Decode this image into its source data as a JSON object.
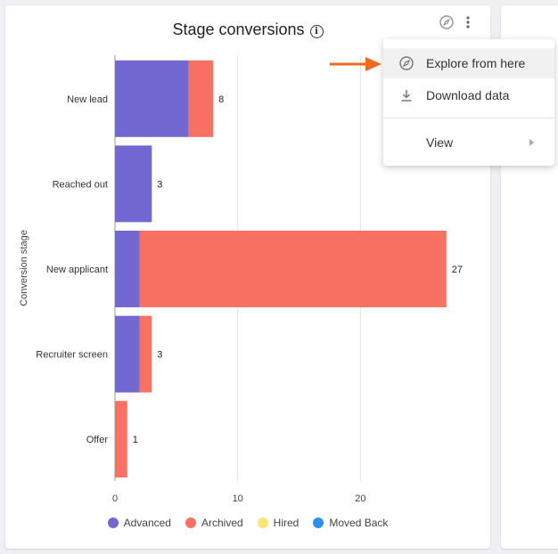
{
  "card": {
    "title": "Stage conversions",
    "info_icon": "info-icon",
    "explore_icon": "compass-icon",
    "more_icon": "kebab-menu-icon"
  },
  "menu": {
    "items": [
      {
        "label": "Explore from here",
        "icon": "compass-icon"
      },
      {
        "label": "Download data",
        "icon": "download-icon"
      },
      {
        "label": "View",
        "icon": "chevron-right-icon"
      }
    ]
  },
  "colors": {
    "advanced": "#7367d2",
    "archived": "#f97162",
    "hired": "#fbe57a",
    "moved_back": "#2f8cf0",
    "arrow": "#ef6a1f"
  },
  "chart_data": {
    "type": "bar",
    "orientation": "horizontal",
    "stacked": true,
    "ylabel": "Conversion stage",
    "xlabel": "",
    "categories": [
      "New lead",
      "Reached out",
      "New applicant",
      "Recruiter screen",
      "Offer"
    ],
    "series": [
      {
        "name": "Advanced",
        "values": [
          6,
          3,
          2,
          2,
          0
        ],
        "color": "#7367d2"
      },
      {
        "name": "Archived",
        "values": [
          2,
          0,
          25,
          1,
          1
        ],
        "color": "#f97162"
      },
      {
        "name": "Hired",
        "values": [
          0,
          0,
          0,
          0,
          0
        ],
        "color": "#fbe57a"
      },
      {
        "name": "Moved Back",
        "values": [
          0,
          0,
          0,
          0,
          0
        ],
        "color": "#2f8cf0"
      }
    ],
    "totals": [
      "8",
      "3",
      "27",
      "3",
      "1"
    ],
    "xticks": [
      "0",
      "10",
      "20"
    ],
    "xtick_values": [
      0,
      10,
      20
    ],
    "xlim": [
      0,
      30
    ],
    "grid": true,
    "legend": "bottom"
  }
}
